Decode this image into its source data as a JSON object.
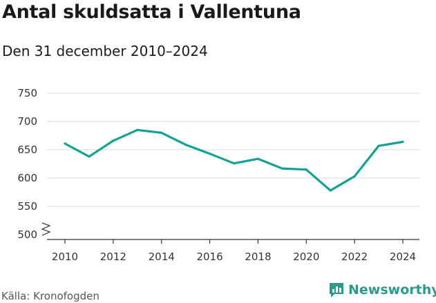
{
  "title": "Antal skuldsatta i Vallentuna",
  "subtitle": "Den 31 december 2010–2024",
  "source": "Källa: Kronofogden",
  "brand": {
    "name": "Newsworthy",
    "icon": "newsworthy-logo-icon"
  },
  "colors": {
    "line": "#12a294",
    "grid": "#d9d9d9",
    "axis": "#333333",
    "brand": "#2b9a8c"
  },
  "chart_data": {
    "type": "line",
    "title": "Antal skuldsatta i Vallentuna",
    "subtitle": "Den 31 december 2010–2024",
    "xlabel": "",
    "ylabel": "",
    "x": [
      2010,
      2011,
      2012,
      2013,
      2014,
      2015,
      2016,
      2017,
      2018,
      2019,
      2020,
      2021,
      2022,
      2023,
      2024
    ],
    "series": [
      {
        "name": "Antal skuldsatta",
        "values": [
          661,
          638,
          666,
          685,
          680,
          659,
          643,
          626,
          634,
          617,
          615,
          578,
          603,
          657,
          664
        ]
      }
    ],
    "xticks": [
      "2010",
      "2012",
      "2014",
      "2016",
      "2018",
      "2020",
      "2022",
      "2024"
    ],
    "yticks": [
      "750",
      "700",
      "650",
      "600",
      "550",
      "500"
    ],
    "ylim": [
      500,
      750
    ],
    "xlim": [
      2010,
      2024
    ],
    "y_axis_break": true,
    "grid": true
  }
}
